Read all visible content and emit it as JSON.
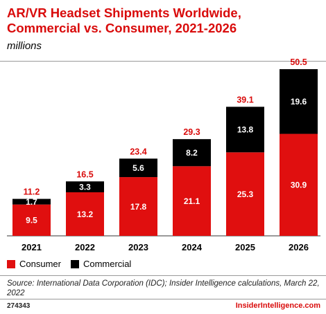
{
  "title_line1": "AR/VR Headset Shipments Worldwide,",
  "title_line2": "Commercial vs. Consumer, 2021-2026",
  "subtitle": "millions",
  "legend": [
    {
      "label": "Consumer",
      "color": "#e00f0f"
    },
    {
      "label": "Commercial",
      "color": "#000000"
    }
  ],
  "source": "Source: International Data Corporation (IDC); Insider Intelligence calculations, March 22, 2022",
  "chart_id": "274343",
  "brand": "InsiderIntelligence.com",
  "chart_data": {
    "type": "bar",
    "stacked": true,
    "categories": [
      "2021",
      "2022",
      "2023",
      "2024",
      "2025",
      "2026"
    ],
    "series": [
      {
        "name": "Consumer",
        "color": "#e00f0f",
        "values": [
          9.5,
          13.2,
          17.8,
          21.1,
          25.3,
          30.9
        ]
      },
      {
        "name": "Commercial",
        "color": "#000000",
        "values": [
          1.7,
          3.3,
          5.6,
          8.2,
          13.8,
          19.6
        ]
      }
    ],
    "totals": [
      11.2,
      16.5,
      23.4,
      29.3,
      39.1,
      50.5
    ],
    "total_color": "#d90b0b",
    "ylim": [
      0,
      50.5
    ],
    "grid": false,
    "legend_position": "bottom-left"
  }
}
